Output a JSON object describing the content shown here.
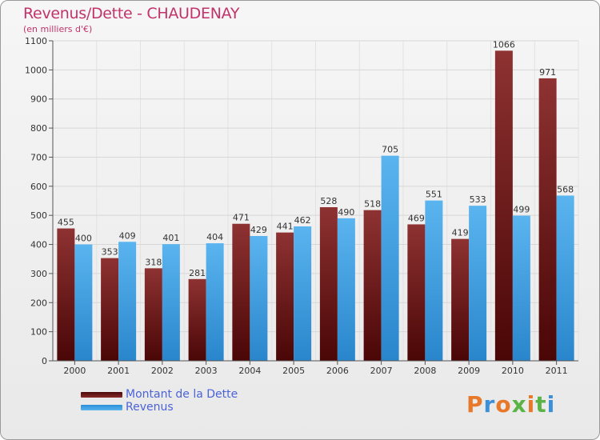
{
  "header": {
    "title": "Revenus/Dette - CHAUDENAY",
    "subtitle": "(en milliers d'€)"
  },
  "chart_data": {
    "type": "bar",
    "title": "Revenus/Dette - CHAUDENAY",
    "ylabel": "(en milliers d'€)",
    "ylim": [
      0,
      1100
    ],
    "yticks": [
      0,
      100,
      200,
      300,
      400,
      500,
      600,
      700,
      800,
      900,
      1000,
      1100
    ],
    "grid": true,
    "legend_placement": "bottom-left",
    "categories": [
      "2000",
      "2001",
      "2002",
      "2003",
      "2004",
      "2005",
      "2006",
      "2007",
      "2008",
      "2009",
      "2010",
      "2011"
    ],
    "series": [
      {
        "name": "Montant de la Dette",
        "color": "#7a1c1c",
        "values": [
          455,
          353,
          318,
          281,
          471,
          441,
          528,
          518,
          469,
          419,
          1066,
          971
        ]
      },
      {
        "name": "Revenus",
        "color": "#4aa8ea",
        "values": [
          400,
          409,
          401,
          404,
          429,
          462,
          490,
          705,
          551,
          533,
          499,
          568
        ]
      }
    ]
  },
  "legend": {
    "items": [
      {
        "label": "Montant de la Dette"
      },
      {
        "label": "Revenus"
      }
    ]
  },
  "brand": {
    "text": "Proxiti",
    "colors": [
      "#e8792b",
      "#3d8fd6",
      "#e8792b",
      "#5bb346",
      "#e8792b",
      "#5bb346",
      "#3d8fd6"
    ]
  }
}
